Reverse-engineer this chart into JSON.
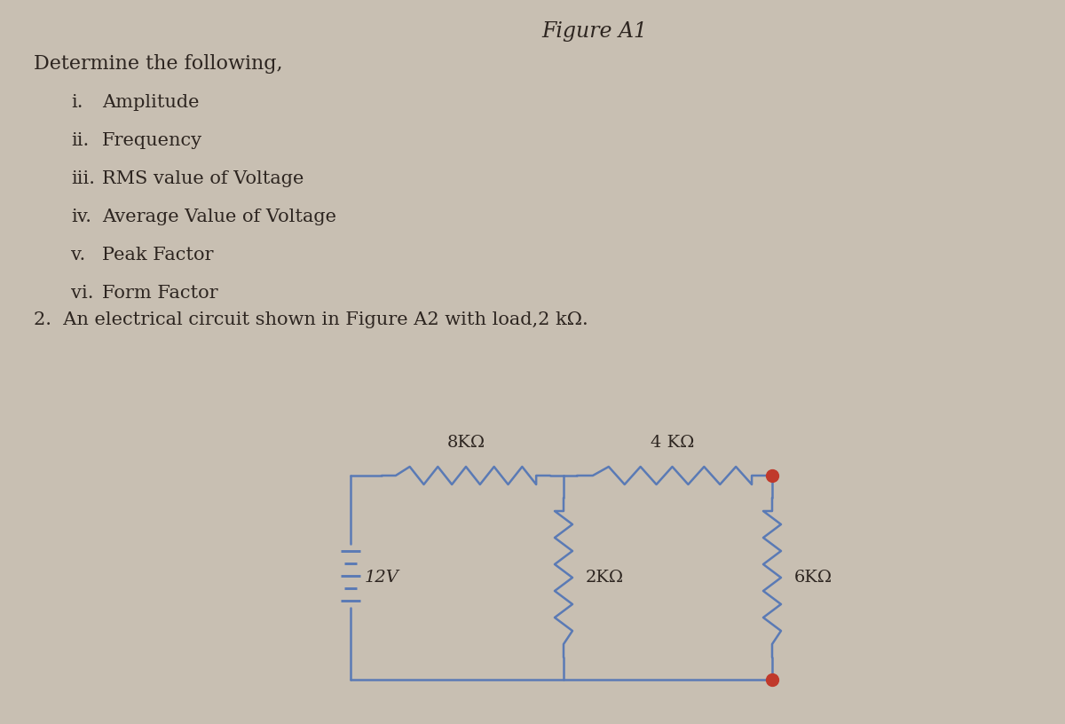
{
  "bg_color": "#c8bfb2",
  "text_color": "#2d2520",
  "fig_title": "Figure A1",
  "heading": "Determine the following,",
  "items_num": [
    "i.",
    "ii.",
    "iii.",
    "iv.",
    "v.",
    "vi."
  ],
  "items_text": [
    "Amplitude",
    "Frequency",
    "RMS value of Voltage",
    "Average Value of Voltage",
    "Peak Factor",
    "Form Factor"
  ],
  "q2_text": "2.  An electrical circuit shown in Figure A2 with load,2 kΩ.",
  "circuit_color": "#5a7ab5",
  "dot_color": "#c0392b",
  "wire_lw": 1.8,
  "res_lw": 1.8
}
